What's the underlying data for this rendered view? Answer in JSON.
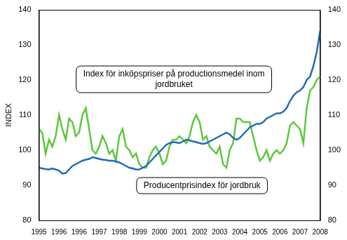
{
  "chart_data": {
    "type": "line",
    "y_label": "INDEX",
    "categories": [
      "1995",
      null,
      null,
      null,
      null,
      null,
      "1996",
      null,
      null,
      null,
      null,
      null,
      "1996",
      null,
      null,
      null,
      null,
      null,
      "1997",
      null,
      null,
      null,
      null,
      null,
      "1998",
      null,
      null,
      null,
      null,
      null,
      "1999",
      null,
      null,
      null,
      null,
      null,
      "2000",
      null,
      null,
      null,
      null,
      null,
      "2001",
      null,
      null,
      null,
      null,
      null,
      "2002",
      null,
      null,
      null,
      null,
      null,
      "2003",
      null,
      null,
      null,
      null,
      null,
      "2004",
      null,
      null,
      null,
      null,
      null,
      "2005",
      null,
      null,
      null,
      null,
      null,
      "2006",
      null,
      null,
      null,
      null,
      null,
      "2007",
      null,
      null,
      null,
      null,
      null,
      "2008"
    ],
    "series": [
      {
        "name": "Index för inköpspriser på productionsmedel inom jordbruket",
        "color": "#1f6bb8",
        "values": [
          95,
          94.8,
          94.6,
          94.5,
          94.8,
          94.5,
          94.2,
          93.3,
          93.5,
          94.5,
          95.5,
          96,
          96.5,
          97,
          97.3,
          97.5,
          98,
          97.8,
          97.5,
          97.3,
          97.2,
          97,
          97,
          96.8,
          96.5,
          96,
          95.5,
          95,
          94.8,
          94.5,
          94.5,
          95,
          95.5,
          96.5,
          97.5,
          98.5,
          99.5,
          100.5,
          101.5,
          102,
          102.3,
          102.2,
          102,
          102.5,
          103,
          102.8,
          102.5,
          102.3,
          102,
          101.8,
          102,
          102.5,
          103,
          103.5,
          104,
          104.5,
          105,
          104.5,
          103.5,
          103,
          103.5,
          104.5,
          105.5,
          106.5,
          107,
          107.5,
          107.5,
          108,
          109,
          109.5,
          110,
          110.5,
          110.5,
          111,
          112,
          114,
          115.5,
          116.5,
          117,
          118,
          120,
          121,
          124,
          128,
          134
        ]
      },
      {
        "name": "Producentprisindex för jordbruk",
        "color": "#5cc83c",
        "values": [
          106,
          105,
          99,
          103,
          101,
          104,
          110,
          106,
          103,
          109,
          108,
          104,
          105,
          110,
          112,
          106,
          100,
          99,
          101,
          104,
          102,
          99,
          100,
          97,
          104,
          106,
          101,
          100,
          98,
          99,
          96,
          95,
          95,
          98,
          100,
          101,
          99,
          96,
          97,
          101,
          103,
          103,
          104,
          103,
          102,
          104,
          108,
          110,
          108,
          103,
          104,
          101,
          100,
          99,
          101,
          96,
          95,
          100,
          102,
          109,
          109,
          108,
          108,
          108,
          104,
          100,
          97,
          98,
          100,
          97,
          99,
          100,
          99,
          100,
          102,
          107,
          108,
          107,
          106,
          102,
          112,
          117,
          118,
          120,
          121
        ]
      }
    ],
    "ylim": [
      80,
      140
    ],
    "yticks": [
      80,
      90,
      100,
      110,
      120,
      130,
      140
    ],
    "y2lim": [
      80,
      140
    ],
    "y2ticks": [
      80,
      90,
      100,
      110,
      120,
      130,
      140
    ],
    "grid": false
  }
}
